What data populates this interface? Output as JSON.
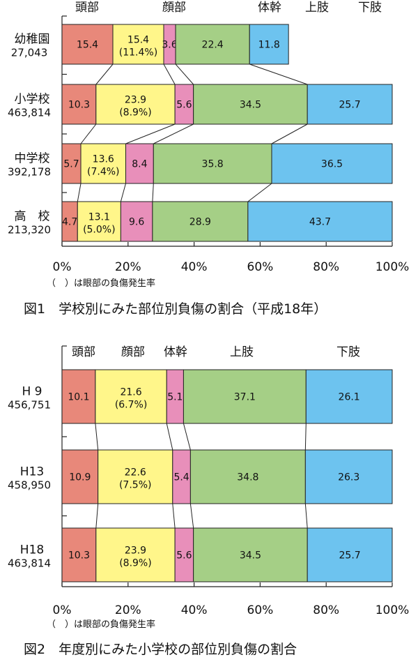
{
  "colors": {
    "head": "#e8887a",
    "face": "#fff68a",
    "trunk": "#e88fba",
    "upper_limb": "#a5cf86",
    "lower_limb": "#6dc3ef",
    "border": "#222222"
  },
  "chart_data": [
    {
      "type": "bar",
      "stacked": true,
      "orientation": "horizontal",
      "title": "図1　学校別にみた部位別負傷の割合（平成18年）",
      "note": "（　）は眼部の負傷発生率",
      "series_names": [
        "頭部",
        "顔部",
        "体幹",
        "上肢",
        "下肢"
      ],
      "xlim": [
        0,
        100
      ],
      "xticks": [
        "0%",
        "20%",
        "40%",
        "60%",
        "80%",
        "100%"
      ],
      "rows": [
        {
          "label": "幼稚園",
          "count": "27,043",
          "values": [
            15.4,
            15.4,
            3.6,
            22.4,
            11.8
          ],
          "face_sub": "(11.4%)"
        },
        {
          "label": "小学校",
          "count": "463,814",
          "values": [
            10.3,
            23.9,
            5.6,
            34.5,
            25.7
          ],
          "face_sub": "(8.9%)"
        },
        {
          "label": "中学校",
          "count": "392,178",
          "values": [
            5.7,
            13.6,
            8.4,
            35.8,
            36.5
          ],
          "face_sub": "(7.4%)"
        },
        {
          "label": "高　校",
          "count": "213,320",
          "values": [
            4.7,
            13.1,
            9.6,
            28.9,
            43.7
          ],
          "face_sub": "(5.0%)"
        }
      ]
    },
    {
      "type": "bar",
      "stacked": true,
      "orientation": "horizontal",
      "title": "図2　年度別にみた小学校の部位別負傷の割合",
      "note": "（　）は眼部の負傷発生率",
      "series_names": [
        "頭部",
        "顔部",
        "体幹",
        "上肢",
        "下肢"
      ],
      "xlim": [
        0,
        100
      ],
      "xticks": [
        "0%",
        "20%",
        "40%",
        "60%",
        "80%",
        "100%"
      ],
      "rows": [
        {
          "label": "H 9",
          "count": "456,751",
          "values": [
            10.1,
            21.6,
            5.1,
            37.1,
            26.1
          ],
          "face_sub": "(6.7%)"
        },
        {
          "label": "H13",
          "count": "458,950",
          "values": [
            10.9,
            22.6,
            5.4,
            34.8,
            26.3
          ],
          "face_sub": "(7.5%)"
        },
        {
          "label": "H18",
          "count": "463,814",
          "values": [
            10.3,
            23.9,
            5.6,
            34.5,
            25.7
          ],
          "face_sub": "(8.9%)"
        }
      ]
    }
  ]
}
